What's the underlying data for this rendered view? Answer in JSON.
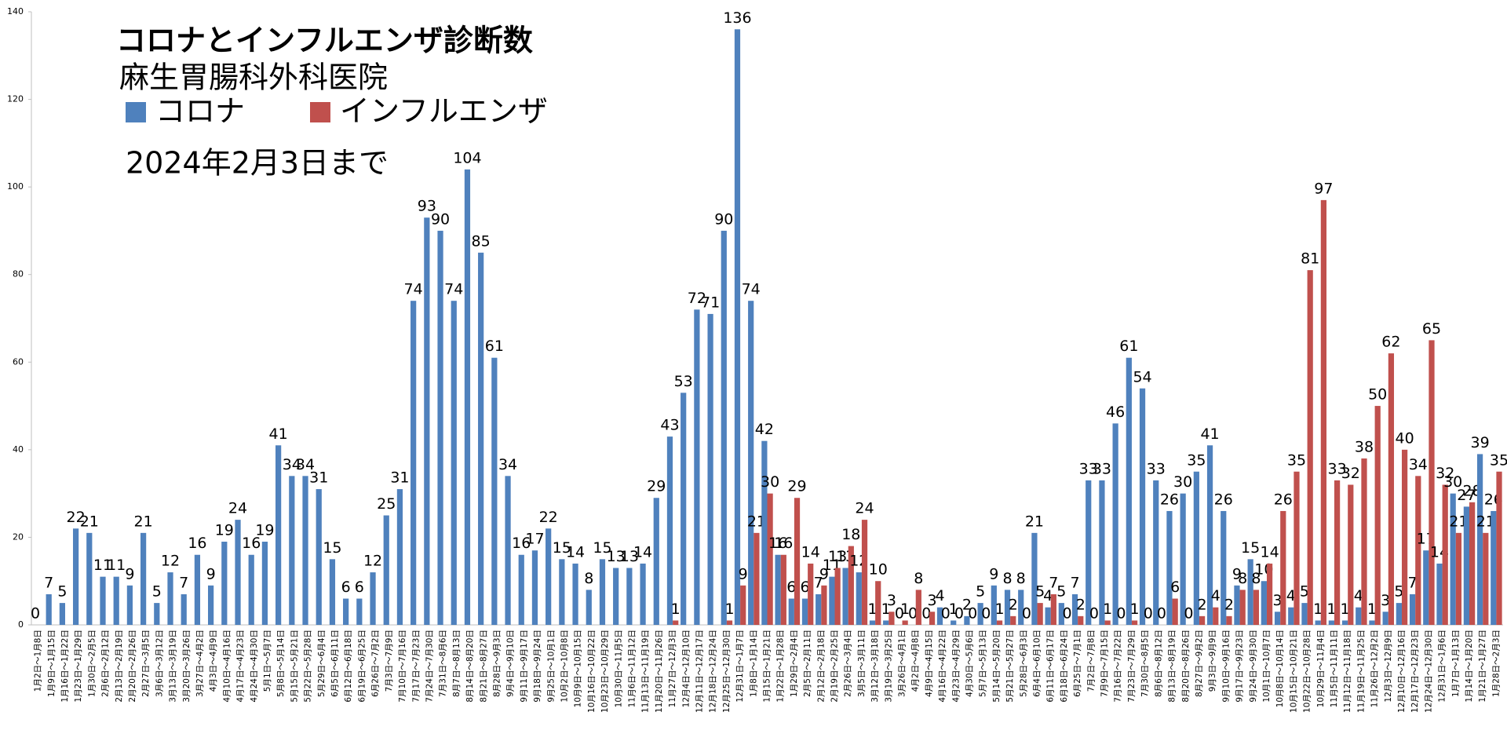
{
  "chart_data": {
    "type": "bar",
    "title": "コロナとインフルエンザ診断数",
    "subtitle": "麻生胃腸科外科医院",
    "annotation": "2024年2月3日まで",
    "categories": [
      "1月2日～1月8日",
      "1月9日～1月15日",
      "1月16日～1月22日",
      "1月23日～1月29日",
      "1月30日～2月5日",
      "2月6日～2月12日",
      "2月13日～2月19日",
      "2月20日～2月26日",
      "2月27日～3月5日",
      "3月6日～3月12日",
      "3月13日～3月19日",
      "3月20日～3月26日",
      "3月27日～4月2日",
      "4月3日～4月9日",
      "4月10日～4月16日",
      "4月17日～4月23日",
      "4月24日～4月30日",
      "5月1日～5月7日",
      "5月8日～5月14日",
      "5月15日～5月21日",
      "5月22日～5月28日",
      "5月29日～6月4日",
      "6月5日～6月11日",
      "6月12日～6月18日",
      "6月19日～6月25日",
      "6月26日～7月2日",
      "7月3日～7月9日",
      "7月10日～7月16日",
      "7月17日～7月23日",
      "7月24日～7月30日",
      "7月31日～8月6日",
      "8月7日～8月13日",
      "8月14日～8月20日",
      "8月21日～8月27日",
      "8月28日～9月3日",
      "9月4日～9月10日",
      "9月11日～9月17日",
      "9月18日～9月24日",
      "9月25日～10月1日",
      "10月2日～10月8日",
      "10月9日～10月15日",
      "10月16日～10月22日",
      "10月23日～10月29日",
      "10月30日～11月5日",
      "11月6日～11月12日",
      "11月13日～11月19日",
      "11月20日～11月26日",
      "11月27日～12月3日",
      "12月4日～12月10日",
      "12月11日～12月17日",
      "12月18日～12月24日",
      "12月25日～12月30日",
      "12月31日～1月7日",
      "1月8日～1月14日",
      "1月15日～1月21日",
      "1月22日～1月28日",
      "1月29日～2月4日",
      "2月5日～2月11日",
      "2月12日～2月18日",
      "2月19日～2月25日",
      "2月26日～3月4日",
      "3月5日～3月11日",
      "3月12日～3月18日",
      "3月19日～3月25日",
      "3月26日～4月1日",
      "4月2日～4月8日",
      "4月9日～4月15日",
      "4月16日～4月22日",
      "4月23日～4月29日",
      "4月30日～5月6日",
      "5月7日～5月13日",
      "5月14日～5月20日",
      "5月21日～5月27日",
      "5月28日～6月3日",
      "6月4日～6月10日",
      "6月11日～6月17日",
      "6月18日～6月24日",
      "6月25日～7月1日",
      "7月2日～7月8日",
      "7月9日～7月15日",
      "7月16日～7月22日",
      "7月23日～7月29日",
      "7月30日～8月5日",
      "8月6日～8月12日",
      "8月13日～8月19日",
      "8月20日～8月26日",
      "8月27日～9月2日",
      "9月3日～9月9日",
      "9月10日～9月16日",
      "9月17日～9月23日",
      "9月24日～9月30日",
      "10月1日～10月7日",
      "10月8日～10月14日",
      "10月15日～10月21日",
      "10月22日～10月28日",
      "10月29日～11月4日",
      "11月5日～11月11日",
      "11月12日～11月18日",
      "11月19日～11月25日",
      "11月26日～12月2日",
      "12月3日～12月9日",
      "12月10日～12月16日",
      "12月17日～12月23日",
      "12月24日～12月30日",
      "12月31日～1月6日",
      "1月7日～1月13日",
      "1月14日～1月20日",
      "1月21日～1月27日",
      "1月28日～2月3日"
    ],
    "series": [
      {
        "name": "コロナ",
        "color": "#4f81bd",
        "values": [
          0,
          7,
          5,
          22,
          21,
          11,
          11,
          9,
          21,
          5,
          12,
          7,
          16,
          9,
          19,
          24,
          16,
          19,
          41,
          34,
          34,
          31,
          15,
          6,
          6,
          12,
          25,
          31,
          74,
          93,
          90,
          74,
          104,
          85,
          61,
          34,
          16,
          17,
          22,
          15,
          14,
          8,
          15,
          13,
          13,
          14,
          29,
          43,
          53,
          72,
          71,
          90,
          136,
          74,
          42,
          16,
          6,
          6,
          7,
          11,
          13,
          12,
          1,
          1,
          0,
          0,
          0,
          4,
          1,
          2,
          5,
          9,
          8,
          8,
          21,
          4,
          5,
          7,
          33,
          33,
          46,
          61,
          54,
          33,
          26,
          30,
          35,
          41,
          26,
          9,
          15,
          10,
          3,
          4,
          5,
          1,
          1,
          1,
          4,
          1,
          3,
          5,
          7,
          17,
          14,
          30,
          27,
          39,
          26
        ]
      },
      {
        "name": "インフルエンザ",
        "color": "#c0504d",
        "values": [
          null,
          null,
          null,
          null,
          null,
          null,
          null,
          null,
          null,
          null,
          null,
          null,
          null,
          null,
          null,
          null,
          null,
          null,
          null,
          null,
          null,
          null,
          null,
          null,
          null,
          null,
          null,
          null,
          null,
          null,
          null,
          null,
          null,
          null,
          null,
          null,
          null,
          null,
          null,
          null,
          null,
          null,
          null,
          null,
          null,
          null,
          null,
          1,
          null,
          null,
          null,
          1,
          9,
          21,
          30,
          16,
          29,
          14,
          9,
          13,
          18,
          24,
          10,
          3,
          1,
          8,
          3,
          0,
          0,
          0,
          0,
          1,
          2,
          0,
          5,
          7,
          0,
          2,
          0,
          1,
          0,
          1,
          0,
          0,
          6,
          0,
          2,
          4,
          2,
          8,
          8,
          14,
          26,
          35,
          81,
          97,
          33,
          32,
          38,
          50,
          62,
          40,
          34,
          65,
          32,
          21,
          28,
          21,
          35
        ]
      }
    ],
    "ylim": [
      0,
      140
    ],
    "yticks": [
      0,
      20,
      40,
      60,
      80,
      100,
      120,
      140
    ]
  }
}
